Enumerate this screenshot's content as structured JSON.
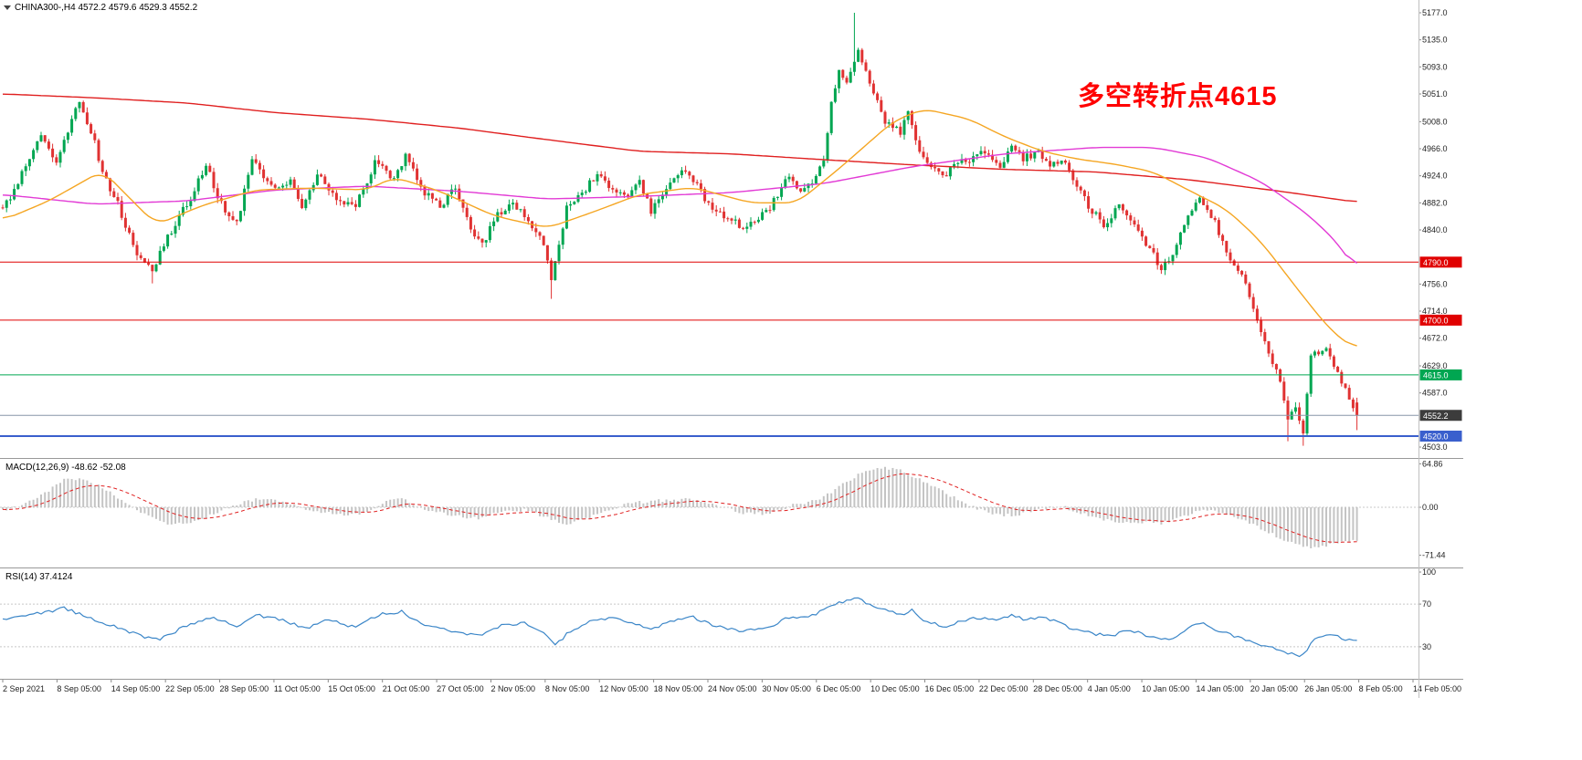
{
  "window": {
    "title": "CHINA300-,H4 4572.2 4579.6 4529.3 4552.2",
    "symbol": "CHINA300-",
    "timeframe": "H4"
  },
  "annotation": {
    "text": "多空转折点4615",
    "color": "#ff0000"
  },
  "indicator_labels": {
    "macd": "MACD(12,26,9) -48.62 -52.08",
    "rsi": "RSI(14) 37.4124"
  },
  "price_scale": {
    "ticks": [
      "5177.0",
      "5135.0",
      "5093.0",
      "5051.0",
      "5008.0",
      "4966.0",
      "4924.0",
      "4882.0",
      "4840.0",
      "4756.0",
      "4714.0",
      "4672.0",
      "4629.0",
      "4587.0",
      "4503.0"
    ]
  },
  "macd_scale": {
    "ticks": [
      "64.86",
      "0.00",
      "-71.44"
    ]
  },
  "rsi_scale": {
    "ticks": [
      "100",
      "70",
      "30"
    ]
  },
  "time_scale": {
    "labels": [
      "2 Sep 2021",
      "8 Sep 05:00",
      "14 Sep 05:00",
      "22 Sep 05:00",
      "28 Sep 05:00",
      "11 Oct 05:00",
      "15 Oct 05:00",
      "21 Oct 05:00",
      "27 Oct 05:00",
      "2 Nov 05:00",
      "8 Nov 05:00",
      "12 Nov 05:00",
      "18 Nov 05:00",
      "24 Nov 05:00",
      "30 Nov 05:00",
      "6 Dec 05:00",
      "10 Dec 05:00",
      "16 Dec 05:00",
      "22 Dec 05:00",
      "28 Dec 05:00",
      "4 Jan 05:00",
      "10 Jan 05:00",
      "14 Jan 05:00",
      "20 Jan 05:00",
      "26 Jan 05:00",
      "8 Feb 05:00",
      "14 Feb 05:00"
    ]
  },
  "levels": [
    {
      "value": 4790.0,
      "label": "4790.0",
      "color": "#e00000",
      "width": 1,
      "label_bg": "#e00000",
      "kind": "resistance"
    },
    {
      "value": 4700.0,
      "label": "4700.0",
      "color": "#e00000",
      "width": 1,
      "label_bg": "#e00000",
      "kind": "resistance"
    },
    {
      "value": 4615.0,
      "label": "4615.0",
      "color": "#00a651",
      "width": 1,
      "label_bg": "#00a651",
      "kind": "pivot"
    },
    {
      "value": 4552.2,
      "label": "4552.2",
      "color": "#8896a8",
      "width": 1,
      "label_bg": "#3c3c3c",
      "kind": "current-price"
    },
    {
      "value": 4520.0,
      "label": "4520.0",
      "color": "#3a5fcd",
      "width": 2,
      "label_bg": "#3a5fcd",
      "kind": "support"
    }
  ],
  "colors": {
    "background": "#ffffff",
    "candle_up": "#00a651",
    "candle_down": "#e03232",
    "ma_slow": "#e02020",
    "ma_mid": "#e23ad5",
    "ma_fast": "#f5a623",
    "macd_hist": "#c4c4c4",
    "macd_signal": "#e02020",
    "rsi_line": "#3b86c8",
    "axis_text": "#222222",
    "separator": "#999999",
    "annotation": "#ff0000"
  },
  "chart_data": {
    "type": "candlestick",
    "symbol": "CHINA300-",
    "timeframe": "H4",
    "title": "CHINA300-,H4",
    "last_candle": {
      "open": 4572.2,
      "high": 4579.6,
      "low": 4529.3,
      "close": 4552.2
    },
    "candle_count": 354,
    "price_axis_range": [
      4503.0,
      5177.0
    ],
    "close_keyframes": [
      [
        0,
        4870
      ],
      [
        10,
        4985
      ],
      [
        14,
        4945
      ],
      [
        20,
        5040
      ],
      [
        23,
        4995
      ],
      [
        26,
        4930
      ],
      [
        30,
        4880
      ],
      [
        35,
        4800
      ],
      [
        39,
        4775
      ],
      [
        43,
        4830
      ],
      [
        49,
        4890
      ],
      [
        53,
        4940
      ],
      [
        57,
        4880
      ],
      [
        61,
        4850
      ],
      [
        65,
        4950
      ],
      [
        70,
        4905
      ],
      [
        75,
        4915
      ],
      [
        78,
        4875
      ],
      [
        82,
        4925
      ],
      [
        87,
        4890
      ],
      [
        92,
        4875
      ],
      [
        97,
        4945
      ],
      [
        102,
        4920
      ],
      [
        105,
        4955
      ],
      [
        109,
        4905
      ],
      [
        114,
        4875
      ],
      [
        118,
        4905
      ],
      [
        122,
        4845
      ],
      [
        125,
        4815
      ],
      [
        129,
        4865
      ],
      [
        133,
        4880
      ],
      [
        136,
        4860
      ],
      [
        140,
        4835
      ],
      [
        143,
        4765
      ],
      [
        147,
        4875
      ],
      [
        152,
        4905
      ],
      [
        155,
        4925
      ],
      [
        159,
        4905
      ],
      [
        163,
        4890
      ],
      [
        166,
        4920
      ],
      [
        169,
        4865
      ],
      [
        172,
        4900
      ],
      [
        176,
        4925
      ],
      [
        179,
        4930
      ],
      [
        183,
        4890
      ],
      [
        186,
        4865
      ],
      [
        190,
        4855
      ],
      [
        193,
        4845
      ],
      [
        197,
        4855
      ],
      [
        200,
        4875
      ],
      [
        203,
        4905
      ],
      [
        205,
        4925
      ],
      [
        208,
        4895
      ],
      [
        211,
        4915
      ],
      [
        214,
        4950
      ],
      [
        216,
        5040
      ],
      [
        218,
        5090
      ],
      [
        220,
        5065
      ],
      [
        223,
        5125
      ],
      [
        225,
        5085
      ],
      [
        228,
        5040
      ],
      [
        230,
        5010
      ],
      [
        234,
        4990
      ],
      [
        236,
        5020
      ],
      [
        239,
        4965
      ],
      [
        242,
        4935
      ],
      [
        246,
        4925
      ],
      [
        249,
        4945
      ],
      [
        253,
        4950
      ],
      [
        256,
        4960
      ],
      [
        260,
        4940
      ],
      [
        263,
        4970
      ],
      [
        266,
        4950
      ],
      [
        270,
        4960
      ],
      [
        273,
        4940
      ],
      [
        276,
        4950
      ],
      [
        280,
        4905
      ],
      [
        284,
        4870
      ],
      [
        287,
        4850
      ],
      [
        291,
        4875
      ],
      [
        294,
        4860
      ],
      [
        298,
        4820
      ],
      [
        302,
        4782
      ],
      [
        305,
        4800
      ],
      [
        309,
        4860
      ],
      [
        312,
        4888
      ],
      [
        316,
        4852
      ],
      [
        319,
        4805
      ],
      [
        323,
        4772
      ],
      [
        327,
        4705
      ],
      [
        330,
        4645
      ],
      [
        333,
        4605
      ],
      [
        335,
        4545
      ],
      [
        337,
        4565
      ],
      [
        339,
        4522
      ],
      [
        341,
        4640
      ],
      [
        344,
        4658
      ],
      [
        346,
        4648
      ],
      [
        349,
        4602
      ],
      [
        351,
        4580
      ],
      [
        353,
        4552.2
      ]
    ],
    "wick_overrides": [
      [
        39,
        null,
        4757
      ],
      [
        143,
        null,
        4733
      ],
      [
        222,
        5177.0,
        null
      ],
      [
        335,
        null,
        4512
      ],
      [
        339,
        null,
        4505
      ]
    ],
    "moving_averages": [
      {
        "name": "ma-slow",
        "color": "#e02020",
        "keyframes": [
          [
            0,
            5051
          ],
          [
            24,
            5045
          ],
          [
            48,
            5037
          ],
          [
            71,
            5022
          ],
          [
            95,
            5012
          ],
          [
            119,
            4998
          ],
          [
            142,
            4980
          ],
          [
            166,
            4962
          ],
          [
            190,
            4958
          ],
          [
            214,
            4949
          ],
          [
            237,
            4941
          ],
          [
            261,
            4934
          ],
          [
            285,
            4930
          ],
          [
            309,
            4918
          ],
          [
            333,
            4900
          ],
          [
            353,
            4883
          ]
        ]
      },
      {
        "name": "ma-mid",
        "color": "#e23ad5",
        "keyframes": [
          [
            0,
            4895
          ],
          [
            24,
            4880
          ],
          [
            48,
            4885
          ],
          [
            71,
            4902
          ],
          [
            95,
            4908
          ],
          [
            119,
            4900
          ],
          [
            142,
            4888
          ],
          [
            166,
            4892
          ],
          [
            190,
            4898
          ],
          [
            214,
            4912
          ],
          [
            237,
            4938
          ],
          [
            261,
            4958
          ],
          [
            285,
            4968
          ],
          [
            300,
            4968
          ],
          [
            314,
            4952
          ],
          [
            328,
            4915
          ],
          [
            340,
            4865
          ],
          [
            348,
            4820
          ],
          [
            353,
            4775
          ]
        ]
      },
      {
        "name": "ma-fast",
        "color": "#f5a623",
        "keyframes": [
          [
            0,
            4855
          ],
          [
            12,
            4885
          ],
          [
            26,
            4932
          ],
          [
            40,
            4848
          ],
          [
            52,
            4878
          ],
          [
            66,
            4902
          ],
          [
            80,
            4905
          ],
          [
            95,
            4902
          ],
          [
            102,
            4922
          ],
          [
            114,
            4900
          ],
          [
            128,
            4862
          ],
          [
            142,
            4843
          ],
          [
            154,
            4868
          ],
          [
            166,
            4895
          ],
          [
            180,
            4906
          ],
          [
            195,
            4882
          ],
          [
            207,
            4882
          ],
          [
            218,
            4935
          ],
          [
            232,
            5008
          ],
          [
            240,
            5028
          ],
          [
            252,
            5012
          ],
          [
            261,
            4985
          ],
          [
            271,
            4962
          ],
          [
            280,
            4950
          ],
          [
            290,
            4942
          ],
          [
            300,
            4930
          ],
          [
            309,
            4902
          ],
          [
            319,
            4872
          ],
          [
            328,
            4822
          ],
          [
            337,
            4752
          ],
          [
            345,
            4692
          ],
          [
            350,
            4665
          ],
          [
            353,
            4655
          ]
        ]
      }
    ],
    "macd": {
      "label": "MACD(12,26,9)",
      "value": -48.62,
      "signal": -52.08,
      "axis_ticks": [
        64.86,
        0.0,
        -71.44
      ],
      "hist_keyframes": [
        [
          0,
          -5
        ],
        [
          5,
          2
        ],
        [
          10,
          18
        ],
        [
          16,
          40
        ],
        [
          20,
          44
        ],
        [
          26,
          30
        ],
        [
          32,
          8
        ],
        [
          36,
          -8
        ],
        [
          42,
          -24
        ],
        [
          48,
          -26
        ],
        [
          54,
          -12
        ],
        [
          60,
          2
        ],
        [
          66,
          12
        ],
        [
          73,
          10
        ],
        [
          80,
          -4
        ],
        [
          88,
          -12
        ],
        [
          95,
          -8
        ],
        [
          100,
          8
        ],
        [
          104,
          12
        ],
        [
          110,
          -2
        ],
        [
          117,
          -12
        ],
        [
          124,
          -16
        ],
        [
          130,
          -6
        ],
        [
          136,
          -4
        ],
        [
          141,
          -14
        ],
        [
          147,
          -26
        ],
        [
          152,
          -18
        ],
        [
          158,
          -4
        ],
        [
          164,
          6
        ],
        [
          172,
          10
        ],
        [
          179,
          12
        ],
        [
          186,
          2
        ],
        [
          193,
          -8
        ],
        [
          200,
          -10
        ],
        [
          206,
          4
        ],
        [
          212,
          10
        ],
        [
          218,
          30
        ],
        [
          224,
          52
        ],
        [
          229,
          60
        ],
        [
          234,
          55
        ],
        [
          240,
          38
        ],
        [
          246,
          20
        ],
        [
          252,
          2
        ],
        [
          258,
          -10
        ],
        [
          264,
          -12
        ],
        [
          270,
          -2
        ],
        [
          276,
          2
        ],
        [
          282,
          -10
        ],
        [
          288,
          -20
        ],
        [
          295,
          -22
        ],
        [
          302,
          -24
        ],
        [
          308,
          -12
        ],
        [
          313,
          -4
        ],
        [
          318,
          -8
        ],
        [
          323,
          -18
        ],
        [
          328,
          -32
        ],
        [
          334,
          -48
        ],
        [
          340,
          -60
        ],
        [
          344,
          -58
        ],
        [
          348,
          -52
        ],
        [
          353,
          -48.62
        ]
      ]
    },
    "rsi": {
      "label": "RSI(14)",
      "value": 37.4124,
      "overbought": 70,
      "oversold": 30,
      "range": [
        0,
        100
      ],
      "keyframes": [
        [
          0,
          55
        ],
        [
          10,
          62
        ],
        [
          16,
          66
        ],
        [
          22,
          58
        ],
        [
          30,
          48
        ],
        [
          36,
          40
        ],
        [
          41,
          37
        ],
        [
          48,
          50
        ],
        [
          55,
          58
        ],
        [
          61,
          48
        ],
        [
          66,
          60
        ],
        [
          73,
          55
        ],
        [
          79,
          47
        ],
        [
          85,
          55
        ],
        [
          92,
          48
        ],
        [
          98,
          60
        ],
        [
          104,
          63
        ],
        [
          110,
          50
        ],
        [
          117,
          45
        ],
        [
          124,
          40
        ],
        [
          130,
          50
        ],
        [
          136,
          52
        ],
        [
          141,
          44
        ],
        [
          144,
          31
        ],
        [
          148,
          45
        ],
        [
          153,
          53
        ],
        [
          158,
          57
        ],
        [
          164,
          52
        ],
        [
          169,
          46
        ],
        [
          174,
          54
        ],
        [
          180,
          58
        ],
        [
          186,
          49
        ],
        [
          192,
          45
        ],
        [
          198,
          46
        ],
        [
          204,
          56
        ],
        [
          210,
          58
        ],
        [
          216,
          68
        ],
        [
          222,
          76
        ],
        [
          226,
          70
        ],
        [
          230,
          64
        ],
        [
          234,
          60
        ],
        [
          237,
          64
        ],
        [
          241,
          53
        ],
        [
          246,
          49
        ],
        [
          250,
          55
        ],
        [
          255,
          57
        ],
        [
          259,
          55
        ],
        [
          263,
          60
        ],
        [
          267,
          55
        ],
        [
          271,
          58
        ],
        [
          275,
          53
        ],
        [
          280,
          45
        ],
        [
          285,
          42
        ],
        [
          289,
          40
        ],
        [
          293,
          46
        ],
        [
          297,
          42
        ],
        [
          302,
          36
        ],
        [
          306,
          40
        ],
        [
          310,
          49
        ],
        [
          313,
          52
        ],
        [
          317,
          45
        ],
        [
          321,
          40
        ],
        [
          325,
          35
        ],
        [
          329,
          30
        ],
        [
          333,
          27
        ],
        [
          336,
          23
        ],
        [
          339,
          22
        ],
        [
          342,
          38
        ],
        [
          345,
          42
        ],
        [
          348,
          40
        ],
        [
          351,
          36
        ],
        [
          353,
          37.41
        ]
      ]
    }
  }
}
